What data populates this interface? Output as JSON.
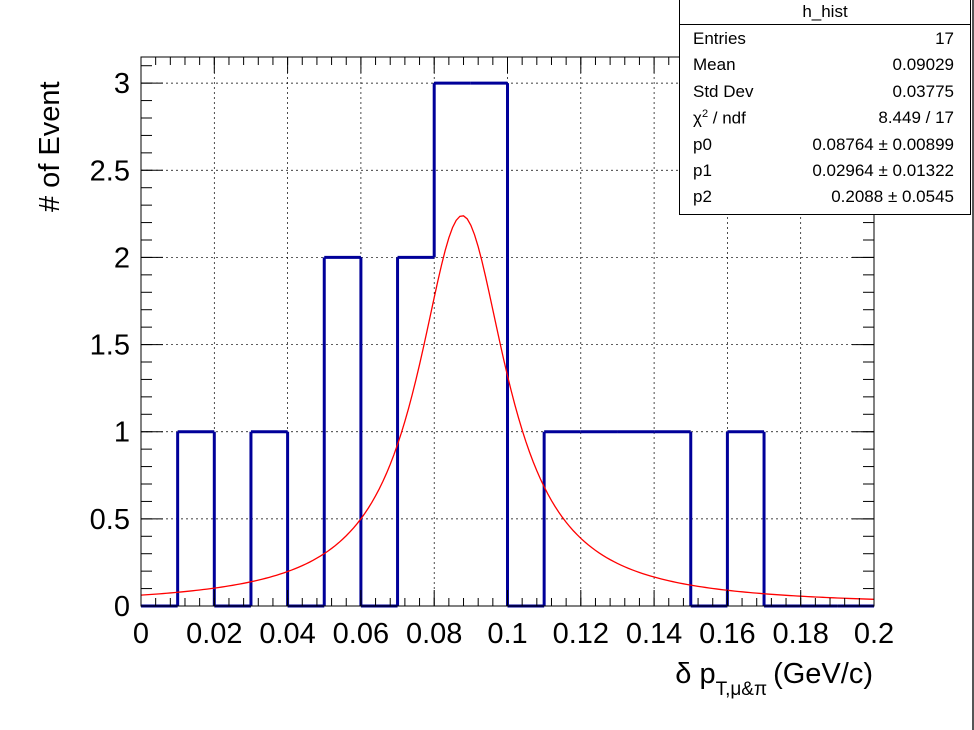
{
  "chart_data": {
    "type": "bar",
    "style": "step-histogram",
    "xlabel_main": "δ p",
    "xlabel_sub": "T,μ&π",
    "xlabel_unit": "(GeV/c)",
    "ylabel": "# of Event",
    "xlim": [
      0,
      0.2
    ],
    "ylim": [
      0,
      3.15
    ],
    "xticks": [
      "0",
      "0.02",
      "0.04",
      "0.06",
      "0.08",
      "0.1",
      "0.12",
      "0.14",
      "0.16",
      "0.18",
      "0.2"
    ],
    "yticks": [
      "0",
      "0.5",
      "1",
      "1.5",
      "2",
      "2.5",
      "3"
    ],
    "grid": true,
    "bin_width": 0.01,
    "bin_edges_start": 0,
    "values": [
      0,
      1,
      0,
      1,
      0,
      2,
      0,
      2,
      3,
      3,
      0,
      1,
      1,
      1,
      1,
      0,
      1,
      0,
      0,
      0
    ],
    "histogram_color": "#000099",
    "fit": {
      "function": "breit-wigner",
      "color": "#ff0000",
      "p0": 0.08764,
      "p1": 0.02964,
      "p2": 0.2088,
      "x_range": [
        0,
        0.2
      ],
      "peak_value": 2.24
    }
  },
  "stats": {
    "title": "h_hist",
    "rows": [
      {
        "label": "Entries",
        "value": "17"
      },
      {
        "label": "Mean",
        "value": "0.09029"
      },
      {
        "label": "Std Dev",
        "value": "0.03775"
      },
      {
        "label_pre": "χ",
        "label_sup": "2",
        "label_post": " / ndf",
        "value": "8.449 / 17"
      },
      {
        "label": "p0",
        "value": "0.08764 ± 0.00899"
      },
      {
        "label": "p1",
        "value": "0.02964 ± 0.01322"
      },
      {
        "label": "p2",
        "value": "0.2088 ± 0.0545"
      }
    ]
  },
  "colors": {
    "frame": "#000000",
    "grid": "#000000",
    "hist": "#000099",
    "fit": "#ff0000"
  }
}
